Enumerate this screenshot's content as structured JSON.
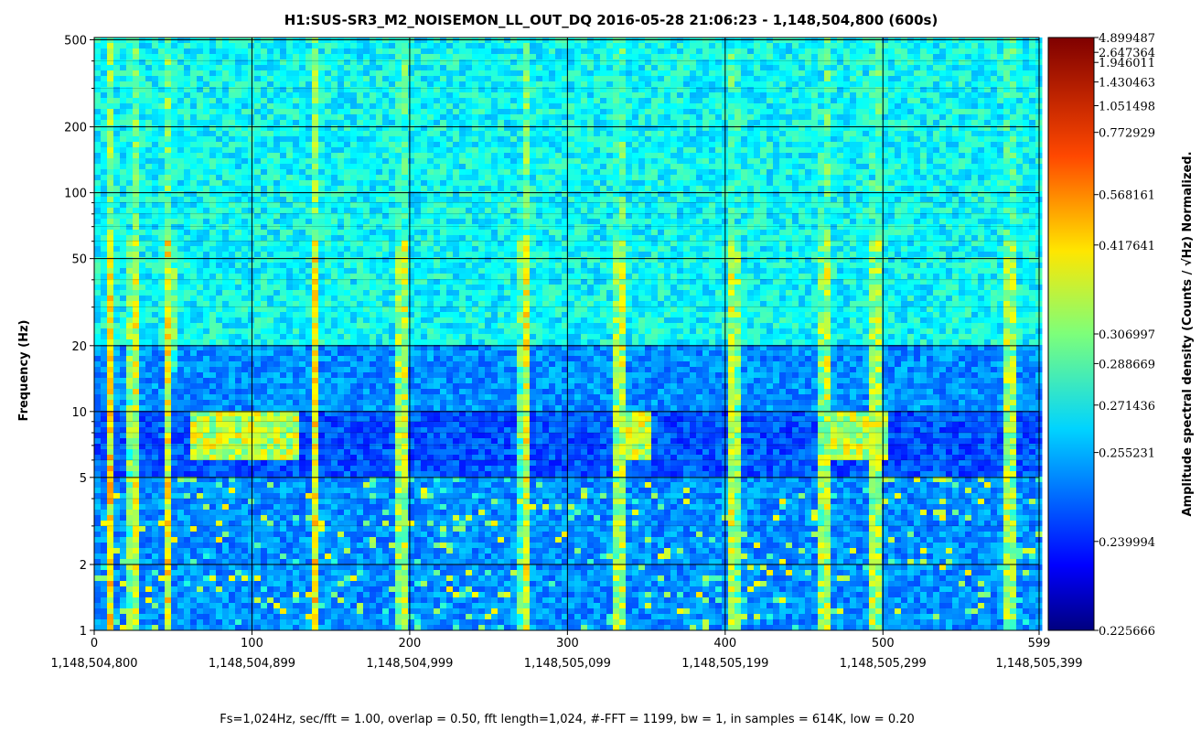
{
  "chart_data": {
    "type": "heatmap",
    "title": "H1:SUS-SR3_M2_NOISEMON_LL_OUT_DQ 2016-05-28 21:06:23 - 1,148,504,800 (600s)",
    "ylabel": "Frequency (Hz)",
    "yscale": "log",
    "ylim": [
      1,
      512
    ],
    "y_ticks": [
      1,
      2,
      5,
      10,
      20,
      50,
      100,
      200,
      500
    ],
    "y_tick_labels": [
      "1",
      "2",
      "5",
      "10",
      "20",
      "50",
      "100",
      "200",
      "500"
    ],
    "xlim": [
      0,
      599
    ],
    "x_ticks": [
      0,
      100,
      200,
      300,
      400,
      500,
      599
    ],
    "x_tick_labels": [
      "0",
      "100",
      "200",
      "300",
      "400",
      "500",
      "599"
    ],
    "x_gps_labels": [
      "1,148,504,800",
      "1,148,504,899",
      "1,148,504,999",
      "1,148,505,099",
      "1,148,505,199",
      "1,148,505,299",
      "1,148,505,399"
    ],
    "grid": true,
    "footer": "Fs=1,024Hz, sec/fft = 1.00, overlap = 0.50, fft length=1,024, #-FFT = 1199, bw = 1, in samples = 614K, low = 0.20",
    "colorbar": {
      "label": "Amplitude spectral density (Counts / √Hz) Normalized.",
      "colormap": "jet",
      "ticks": [
        0.225666,
        0.239994,
        0.255231,
        0.271436,
        0.288669,
        0.306997,
        0.417641,
        0.568161,
        0.772929,
        1.051498,
        1.430463,
        1.946011,
        2.647364,
        4.899487
      ],
      "tick_labels": [
        "0.225666",
        "0.239994",
        "0.255231",
        "0.271436",
        "0.288669",
        "0.306997",
        "0.417641",
        "0.568161",
        "0.772929",
        "1.051498",
        "1.430463",
        "1.946011",
        "2.647364",
        "4.899487"
      ]
    },
    "features": {
      "background_level": "blue (~0.24 normalized)",
      "low_band_hz": [
        5,
        10
      ],
      "transient_streaks_seconds": [
        10,
        25,
        47,
        140,
        195,
        273,
        333,
        405,
        463,
        495,
        580
      ],
      "warm_patches_seconds": [
        [
          62,
          130
        ],
        [
          335,
          355
        ],
        [
          465,
          505
        ]
      ]
    }
  }
}
